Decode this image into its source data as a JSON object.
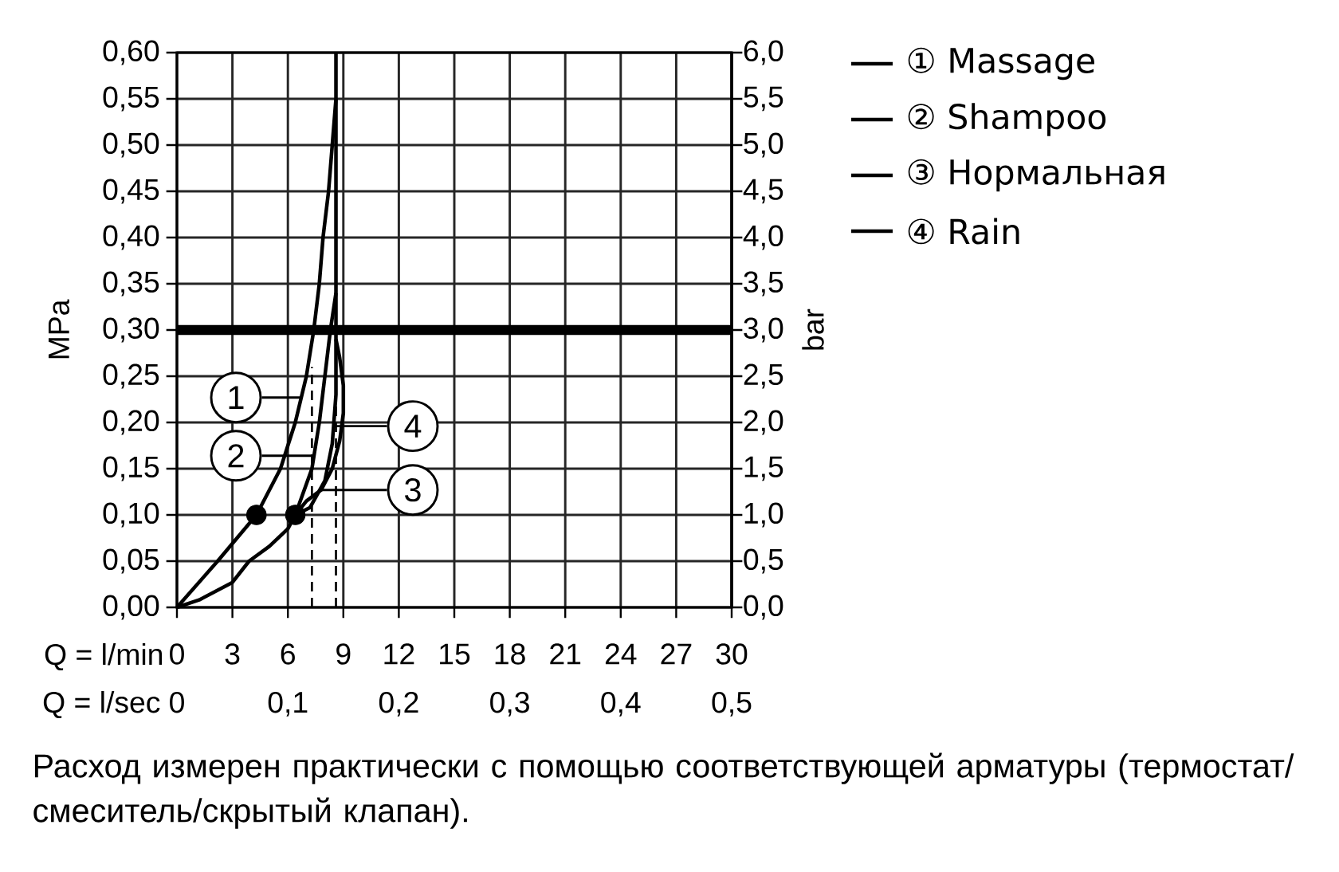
{
  "chart_data": {
    "type": "line",
    "xlabel": "Q = l/min",
    "x2label": "Q = l/sec",
    "ylabel": "MPa",
    "y2label": "bar",
    "xlim": [
      0,
      30
    ],
    "xticks": [
      0,
      3,
      6,
      9,
      12,
      15,
      18,
      21,
      24,
      27,
      30
    ],
    "x2lim": [
      0,
      0.5
    ],
    "x2ticks": [
      {
        "value": 0,
        "label": "0"
      },
      {
        "value": 0.1,
        "label": "0,1"
      },
      {
        "value": 0.2,
        "label": "0,2"
      },
      {
        "value": 0.3,
        "label": "0,3"
      },
      {
        "value": 0.4,
        "label": "0,4"
      },
      {
        "value": 0.5,
        "label": "0,5"
      }
    ],
    "ylim": [
      0,
      0.6
    ],
    "yticks": [
      {
        "value": 0,
        "label": "0,00"
      },
      {
        "value": 0.05,
        "label": "0,05"
      },
      {
        "value": 0.1,
        "label": "0,10"
      },
      {
        "value": 0.15,
        "label": "0,15"
      },
      {
        "value": 0.2,
        "label": "0,20"
      },
      {
        "value": 0.25,
        "label": "0,25"
      },
      {
        "value": 0.3,
        "label": "0,30"
      },
      {
        "value": 0.35,
        "label": "0,35"
      },
      {
        "value": 0.4,
        "label": "0,40"
      },
      {
        "value": 0.45,
        "label": "0,45"
      },
      {
        "value": 0.5,
        "label": "0,50"
      },
      {
        "value": 0.55,
        "label": "0,55"
      },
      {
        "value": 0.6,
        "label": "0,60"
      }
    ],
    "y2lim": [
      0,
      6
    ],
    "y2ticks": [
      {
        "value": 0,
        "label": "0,0"
      },
      {
        "value": 0.5,
        "label": "0,5"
      },
      {
        "value": 1,
        "label": "1,0"
      },
      {
        "value": 1.5,
        "label": "1,5"
      },
      {
        "value": 2,
        "label": "2,0"
      },
      {
        "value": 2.5,
        "label": "2,5"
      },
      {
        "value": 3,
        "label": "3,0"
      },
      {
        "value": 3.5,
        "label": "3,5"
      },
      {
        "value": 4,
        "label": "4,0"
      },
      {
        "value": 4.5,
        "label": "4,5"
      },
      {
        "value": 5,
        "label": "5,0"
      },
      {
        "value": 5.5,
        "label": "5,5"
      },
      {
        "value": 6,
        "label": "6,0"
      }
    ],
    "grid": true,
    "legend": "right",
    "series": [
      {
        "name": "① Massage",
        "color": "#000000",
        "x": [
          0,
          2.2,
          4.3,
          5.6,
          6.4,
          7,
          7.4,
          7.7,
          7.9,
          8.2,
          8.4,
          8.6
        ],
        "values": [
          0,
          0.05,
          0.1,
          0.15,
          0.2,
          0.25,
          0.3,
          0.35,
          0.4,
          0.45,
          0.5,
          0.55
        ]
      },
      {
        "name": "② Shampoo",
        "color": "#000000",
        "x": [
          0,
          1.2,
          3,
          3.9,
          5,
          6,
          6.4,
          7.3,
          7.7,
          8,
          8.3,
          8.6
        ],
        "values": [
          0,
          0.008,
          0.027,
          0.05,
          0.066,
          0.085,
          0.1,
          0.15,
          0.2,
          0.25,
          0.3,
          0.34
        ]
      },
      {
        "name": "③ Нормальная",
        "color": "#000000",
        "x": [
          6.4,
          7,
          7.8,
          8.4,
          8.8,
          9,
          9,
          8.8,
          8.6
        ],
        "values": [
          0.1,
          0.115,
          0.127,
          0.15,
          0.18,
          0.21,
          0.24,
          0.27,
          0.29
        ]
      },
      {
        "name": "④ Rain",
        "color": "#000000",
        "x": [
          6.4,
          7.2,
          8,
          8.4,
          8.6,
          8.6
        ],
        "values": [
          0.1,
          0.108,
          0.137,
          0.177,
          0.23,
          0.6
        ]
      },
      {
        "type": "scatter",
        "marker": "circle",
        "color": "#000000",
        "x": [
          4.3,
          6.4
        ],
        "values": [
          0.1,
          0.1
        ]
      },
      {
        "type": "line",
        "line_style": "dashed",
        "color": "#000000",
        "x": [
          7.3,
          7.3
        ],
        "values": [
          0,
          0.26
        ]
      },
      {
        "type": "line",
        "line_style": "dashed",
        "color": "#000000",
        "x": [
          8.6,
          8.6
        ],
        "values": [
          0,
          0.23
        ]
      }
    ],
    "ref_lines": [
      {
        "axis": "y",
        "value": 0.3,
        "color": "#000000"
      }
    ],
    "annotations": [
      {
        "text": "1",
        "x": 6.7,
        "y": 0.227
      },
      {
        "text": "2",
        "x": 7.4,
        "y": 0.164
      },
      {
        "text": "3",
        "x": 7.8,
        "y": 0.127
      },
      {
        "text": "4",
        "x": 8.5,
        "y": 0.196
      },
      "Расход измерен практически с помощью соответствующей арматуры (термостат/смеситель/скрытый клапан)."
    ]
  }
}
